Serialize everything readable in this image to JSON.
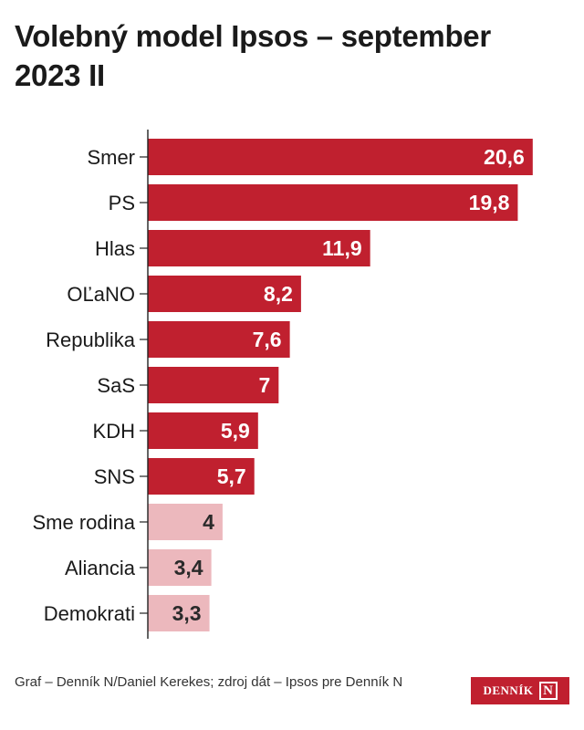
{
  "chart_data": {
    "type": "bar",
    "orientation": "horizontal",
    "title": "Volebný model Ipsos – september 2023 II",
    "categories": [
      "Smer",
      "PS",
      "Hlas",
      "OĽaNO",
      "Republika",
      "SaS",
      "KDH",
      "SNS",
      "Sme rodina",
      "Aliancia",
      "Demokrati"
    ],
    "values": [
      20.6,
      19.8,
      11.9,
      8.2,
      7.6,
      7,
      5.9,
      5.7,
      4,
      3.4,
      3.3
    ],
    "value_labels": [
      "20,6",
      "19,8",
      "11,9",
      "8,2",
      "7,6",
      "7",
      "5,9",
      "5,7",
      "4",
      "3,4",
      "3,3"
    ],
    "xlim": [
      0,
      21
    ],
    "grid": false,
    "colors": {
      "above_threshold": "#c0202f",
      "below_threshold": "#ecb8bd",
      "label_light": "#ffffff",
      "label_dark": "#2a2a2a"
    },
    "highlighted_count": 8
  },
  "footer": {
    "credit": "Graf – Denník N/Daniel Kerekes; zdroj dát – Ipsos pre Denník N"
  },
  "logo": {
    "wordmark": "DENNÍK",
    "mark": "N"
  }
}
